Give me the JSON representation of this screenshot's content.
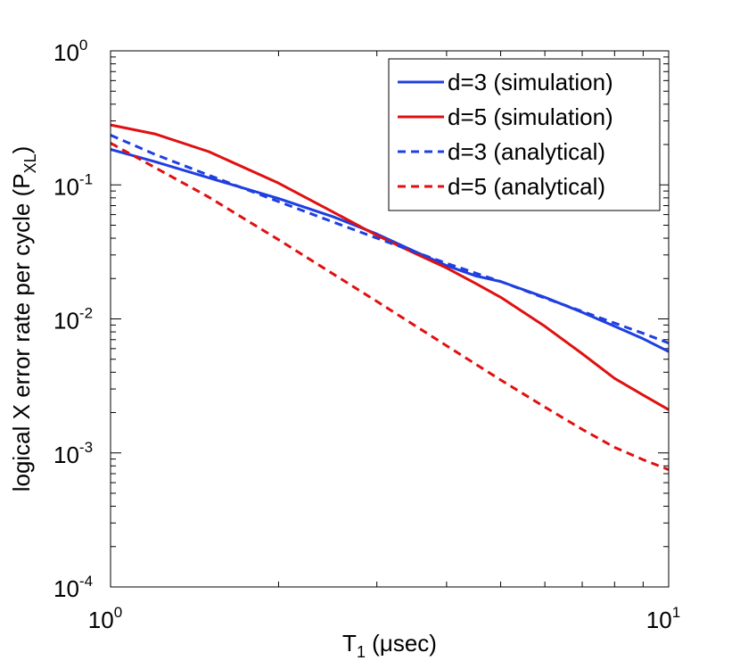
{
  "chart_data": {
    "type": "line",
    "xscale": "log",
    "yscale": "log",
    "xlim": [
      1,
      10
    ],
    "ylim": [
      0.0001,
      1
    ],
    "xlabel": {
      "main": "T",
      "sub": "1",
      "rest": " (μsec)"
    },
    "ylabel": {
      "main": "logical X error rate per cycle (P",
      "sub": "XL",
      "rest": ")"
    },
    "x_ticks": [
      {
        "value": 1,
        "base": "10",
        "exp": "0"
      },
      {
        "value": 10,
        "base": "10",
        "exp": "1"
      }
    ],
    "y_ticks": [
      {
        "value": 1,
        "base": "10",
        "exp": "0"
      },
      {
        "value": 0.1,
        "base": "10",
        "exp": "-1"
      },
      {
        "value": 0.01,
        "base": "10",
        "exp": "-2"
      },
      {
        "value": 0.001,
        "base": "10",
        "exp": "-3"
      },
      {
        "value": 0.0001,
        "base": "10",
        "exp": "-4"
      }
    ],
    "legend_position": "top-right",
    "series": [
      {
        "name": "d=3 (simulation)",
        "color": "#1f3fe0",
        "dash": "solid",
        "x": [
          1,
          1.2,
          1.5,
          2,
          2.5,
          3,
          3.5,
          4,
          4.5,
          5,
          6,
          7,
          8,
          9,
          10
        ],
        "y": [
          0.184,
          0.149,
          0.113,
          0.079,
          0.058,
          0.043,
          0.032,
          0.025,
          0.021,
          0.019,
          0.0145,
          0.0112,
          0.0088,
          0.0071,
          0.0057
        ]
      },
      {
        "name": "d=5 (simulation)",
        "color": "#e01010",
        "dash": "solid",
        "x": [
          1,
          1.2,
          1.5,
          2,
          2.5,
          3,
          3.5,
          4,
          4.5,
          5,
          6,
          7,
          8,
          9,
          10
        ],
        "y": [
          0.28,
          0.24,
          0.177,
          0.103,
          0.063,
          0.042,
          0.031,
          0.024,
          0.0185,
          0.0145,
          0.0088,
          0.0055,
          0.0036,
          0.0027,
          0.0021
        ]
      },
      {
        "name": "d=3 (analytical)",
        "color": "#1f3fe0",
        "dash": "dashed",
        "x": [
          1,
          1.2,
          1.5,
          2,
          2.5,
          3,
          4,
          5,
          6,
          7,
          8,
          9,
          10
        ],
        "y": [
          0.235,
          0.169,
          0.118,
          0.075,
          0.053,
          0.04,
          0.026,
          0.019,
          0.0143,
          0.0114,
          0.0093,
          0.0078,
          0.0066
        ]
      },
      {
        "name": "d=5 (analytical)",
        "color": "#e01010",
        "dash": "dashed",
        "x": [
          1,
          1.5,
          2,
          3,
          4,
          5,
          6,
          7,
          8,
          9,
          10
        ],
        "y": [
          0.205,
          0.081,
          0.039,
          0.0135,
          0.0063,
          0.0035,
          0.0022,
          0.0015,
          0.0011,
          0.00089,
          0.00075
        ]
      }
    ]
  }
}
